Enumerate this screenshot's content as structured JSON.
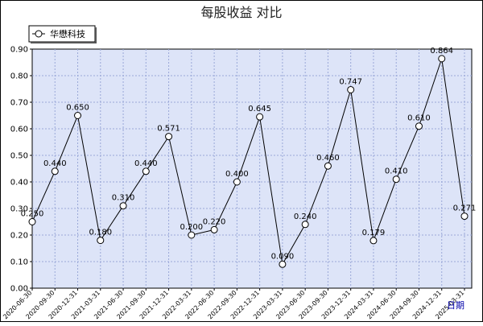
{
  "chart_data": {
    "type": "line",
    "title": "每股收益  对比",
    "xlabel": "日期",
    "ylabel": "",
    "ylim": [
      0,
      0.9
    ],
    "yticks": [
      "0.00",
      "0.10",
      "0.20",
      "0.30",
      "0.40",
      "0.50",
      "0.60",
      "0.70",
      "0.80",
      "0.90"
    ],
    "grid": true,
    "legend_position": "top-left",
    "colors": {
      "background": "#ffffff",
      "plot_background": "#dde4f8",
      "grid": "#9aa8d8",
      "line": "#000000",
      "marker_fill": "#ffffff",
      "border": "#000000"
    },
    "categories": [
      "2020-06-30",
      "2020-09-30",
      "2020-12-31",
      "2021-03-31",
      "2021-06-30",
      "2021-09-30",
      "2021-12-31",
      "2022-03-31",
      "2022-06-30",
      "2022-09-30",
      "2022-12-31",
      "2023-03-31",
      "2023-06-30",
      "2023-09-30",
      "2023-12-31",
      "2024-03-31",
      "2024-06-30",
      "2024-09-30",
      "2024-12-31",
      "2025-03-31"
    ],
    "series": [
      {
        "name": "华懋科技",
        "values": [
          0.25,
          0.44,
          0.65,
          0.18,
          0.31,
          0.44,
          0.571,
          0.2,
          0.22,
          0.4,
          0.645,
          0.09,
          0.24,
          0.46,
          0.747,
          0.179,
          0.41,
          0.61,
          0.864,
          0.271
        ],
        "labels": [
          "0.250",
          "0.440",
          "0.650",
          "0.180",
          "0.310",
          "0.440",
          "0.571",
          "0.200",
          "0.220",
          "0.400",
          "0.645",
          "0.090",
          "0.240",
          "0.460",
          "0.747",
          "0.179",
          "0.410",
          "0.610",
          "0.864",
          "0.271"
        ]
      }
    ]
  }
}
